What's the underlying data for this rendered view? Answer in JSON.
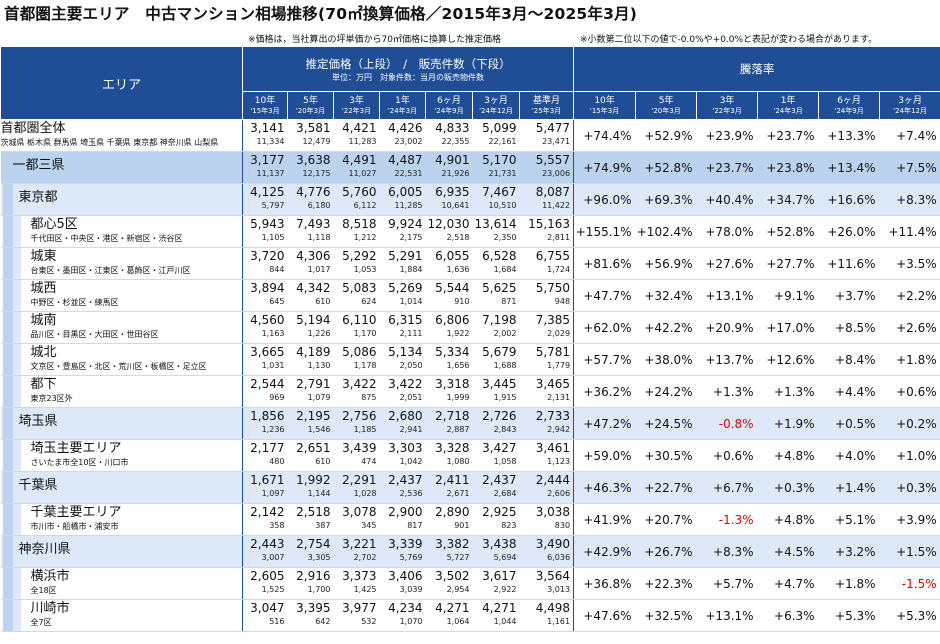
{
  "title": "首都圏主要エリア　中古マンション相場推移(70㎡換算価格／2015年3月～2025年3月)",
  "notes": {
    "left": "※価格は，当社算出の坪単価から70㎡価格に換算した推定価格",
    "right": "※小数第二位以下の値で-0.0%や+0.0%と表記が変わる場合があります。"
  },
  "header": {
    "area": "エリア",
    "price_group": "推定価格（上段）　/　販売件数（下段）",
    "price_sub": "単位：万円　対象件数：当月の販売物件数",
    "change_group": "騰落率",
    "price_cols": [
      {
        "label": "10年",
        "sub": "'15年3月"
      },
      {
        "label": "5年",
        "sub": "'20年3月"
      },
      {
        "label": "3年",
        "sub": "'22年3月"
      },
      {
        "label": "1年",
        "sub": "'24年3月"
      },
      {
        "label": "6ヶ月",
        "sub": "'24年9月"
      },
      {
        "label": "3ヶ月",
        "sub": "'24年12月"
      },
      {
        "label": "基準月",
        "sub": "'25年3月"
      }
    ],
    "change_cols": [
      {
        "label": "10年",
        "sub": "'15年3月"
      },
      {
        "label": "5年",
        "sub": "'20年3月"
      },
      {
        "label": "3年",
        "sub": "'22年3月"
      },
      {
        "label": "1年",
        "sub": "'24年3月"
      },
      {
        "label": "6ヶ月",
        "sub": "'24年9月"
      },
      {
        "label": "3ヶ月",
        "sub": "'24年12月"
      }
    ]
  },
  "rows": [
    {
      "name": "首都圏全体",
      "sub": "茨城県 栃木県 群馬県 埼玉県 千葉県 東京都 神奈川県 山梨県",
      "level": 0,
      "prices": [
        "3,141",
        "3,581",
        "4,421",
        "4,426",
        "4,833",
        "5,099",
        "5,477"
      ],
      "counts": [
        "11,334",
        "12,479",
        "11,283",
        "23,002",
        "22,355",
        "22,161",
        "23,471"
      ],
      "changes": [
        "+74.4%",
        "+52.9%",
        "+23.9%",
        "+23.7%",
        "+13.3%",
        "+7.4%"
      ]
    },
    {
      "name": "一都三県",
      "sub": "",
      "level": 1,
      "prices": [
        "3,177",
        "3,638",
        "4,491",
        "4,487",
        "4,901",
        "5,170",
        "5,557"
      ],
      "counts": [
        "11,137",
        "12,175",
        "11,027",
        "22,531",
        "21,926",
        "21,731",
        "23,006"
      ],
      "changes": [
        "+74.9%",
        "+52.8%",
        "+23.7%",
        "+23.8%",
        "+13.4%",
        "+7.5%"
      ]
    },
    {
      "name": "東京都",
      "sub": "",
      "level": 2,
      "prices": [
        "4,125",
        "4,776",
        "5,760",
        "6,005",
        "6,935",
        "7,467",
        "8,087"
      ],
      "counts": [
        "5,797",
        "6,180",
        "6,112",
        "11,285",
        "10,641",
        "10,510",
        "11,422"
      ],
      "changes": [
        "+96.0%",
        "+69.3%",
        "+40.4%",
        "+34.7%",
        "+16.6%",
        "+8.3%"
      ]
    },
    {
      "name": "都心5区",
      "sub": "千代田区・中央区・港区・新宿区・渋谷区",
      "level": 3,
      "prices": [
        "5,943",
        "7,493",
        "8,518",
        "9,924",
        "12,030",
        "13,614",
        "15,163"
      ],
      "counts": [
        "1,105",
        "1,118",
        "1,212",
        "2,175",
        "2,518",
        "2,350",
        "2,811"
      ],
      "changes": [
        "+155.1%",
        "+102.4%",
        "+78.0%",
        "+52.8%",
        "+26.0%",
        "+11.4%"
      ]
    },
    {
      "name": "城東",
      "sub": "台東区・墨田区・江東区・葛飾区・江戸川区",
      "level": 3,
      "prices": [
        "3,720",
        "4,306",
        "5,292",
        "5,291",
        "6,055",
        "6,528",
        "6,755"
      ],
      "counts": [
        "844",
        "1,017",
        "1,053",
        "1,884",
        "1,636",
        "1,684",
        "1,724"
      ],
      "changes": [
        "+81.6%",
        "+56.9%",
        "+27.6%",
        "+27.7%",
        "+11.6%",
        "+3.5%"
      ]
    },
    {
      "name": "城西",
      "sub": "中野区・杉並区・練馬区",
      "level": 3,
      "prices": [
        "3,894",
        "4,342",
        "5,083",
        "5,269",
        "5,544",
        "5,625",
        "5,750"
      ],
      "counts": [
        "645",
        "610",
        "624",
        "1,014",
        "910",
        "871",
        "948"
      ],
      "changes": [
        "+47.7%",
        "+32.4%",
        "+13.1%",
        "+9.1%",
        "+3.7%",
        "+2.2%"
      ]
    },
    {
      "name": "城南",
      "sub": "品川区・目黒区・大田区・世田谷区",
      "level": 3,
      "prices": [
        "4,560",
        "5,194",
        "6,110",
        "6,315",
        "6,806",
        "7,198",
        "7,385"
      ],
      "counts": [
        "1,163",
        "1,226",
        "1,170",
        "2,111",
        "1,922",
        "2,002",
        "2,029"
      ],
      "changes": [
        "+62.0%",
        "+42.2%",
        "+20.9%",
        "+17.0%",
        "+8.5%",
        "+2.6%"
      ]
    },
    {
      "name": "城北",
      "sub": "文京区・豊島区・北区・荒川区・板橋区・足立区",
      "level": 3,
      "prices": [
        "3,665",
        "4,189",
        "5,086",
        "5,134",
        "5,334",
        "5,679",
        "5,781"
      ],
      "counts": [
        "1,031",
        "1,130",
        "1,178",
        "2,050",
        "1,656",
        "1,688",
        "1,779"
      ],
      "changes": [
        "+57.7%",
        "+38.0%",
        "+13.7%",
        "+12.6%",
        "+8.4%",
        "+1.8%"
      ]
    },
    {
      "name": "都下",
      "sub": "東京23区外",
      "level": 3,
      "prices": [
        "2,544",
        "2,791",
        "3,422",
        "3,422",
        "3,318",
        "3,445",
        "3,465"
      ],
      "counts": [
        "969",
        "1,079",
        "875",
        "2,051",
        "1,999",
        "1,915",
        "2,131"
      ],
      "changes": [
        "+36.2%",
        "+24.2%",
        "+1.3%",
        "+1.3%",
        "+4.4%",
        "+0.6%"
      ]
    },
    {
      "name": "埼玉県",
      "sub": "",
      "level": 2,
      "prices": [
        "1,856",
        "2,195",
        "2,756",
        "2,680",
        "2,718",
        "2,726",
        "2,733"
      ],
      "counts": [
        "1,236",
        "1,546",
        "1,185",
        "2,941",
        "2,887",
        "2,843",
        "2,942"
      ],
      "changes": [
        "+47.2%",
        "+24.5%",
        "-0.8%",
        "+1.9%",
        "+0.5%",
        "+0.2%"
      ]
    },
    {
      "name": "埼玉主要エリア",
      "sub": "さいたま市全10区・川口市",
      "level": 3,
      "prices": [
        "2,177",
        "2,651",
        "3,439",
        "3,303",
        "3,328",
        "3,427",
        "3,461"
      ],
      "counts": [
        "480",
        "610",
        "474",
        "1,042",
        "1,080",
        "1,058",
        "1,123"
      ],
      "changes": [
        "+59.0%",
        "+30.5%",
        "+0.6%",
        "+4.8%",
        "+4.0%",
        "+1.0%"
      ]
    },
    {
      "name": "千葉県",
      "sub": "",
      "level": 2,
      "prices": [
        "1,671",
        "1,992",
        "2,291",
        "2,437",
        "2,411",
        "2,437",
        "2,444"
      ],
      "counts": [
        "1,097",
        "1,144",
        "1,028",
        "2,536",
        "2,671",
        "2,684",
        "2,606"
      ],
      "changes": [
        "+46.3%",
        "+22.7%",
        "+6.7%",
        "+0.3%",
        "+1.4%",
        "+0.3%"
      ]
    },
    {
      "name": "千葉主要エリア",
      "sub": "市川市・船橋市・浦安市",
      "level": 3,
      "prices": [
        "2,142",
        "2,518",
        "3,078",
        "2,900",
        "2,890",
        "2,925",
        "3,038"
      ],
      "counts": [
        "358",
        "387",
        "345",
        "817",
        "901",
        "823",
        "830"
      ],
      "changes": [
        "+41.9%",
        "+20.7%",
        "-1.3%",
        "+4.8%",
        "+5.1%",
        "+3.9%"
      ]
    },
    {
      "name": "神奈川県",
      "sub": "",
      "level": 2,
      "prices": [
        "2,443",
        "2,754",
        "3,221",
        "3,339",
        "3,382",
        "3,438",
        "3,490"
      ],
      "counts": [
        "3,007",
        "3,305",
        "2,702",
        "5,769",
        "5,727",
        "5,694",
        "6,036"
      ],
      "changes": [
        "+42.9%",
        "+26.7%",
        "+8.3%",
        "+4.5%",
        "+3.2%",
        "+1.5%"
      ]
    },
    {
      "name": "横浜市",
      "sub": "全18区",
      "level": 3,
      "prices": [
        "2,605",
        "2,916",
        "3,373",
        "3,406",
        "3,502",
        "3,617",
        "3,564"
      ],
      "counts": [
        "1,525",
        "1,700",
        "1,425",
        "3,039",
        "2,954",
        "2,922",
        "3,013"
      ],
      "changes": [
        "+36.8%",
        "+22.3%",
        "+5.7%",
        "+4.7%",
        "+1.8%",
        "-1.5%"
      ]
    },
    {
      "name": "川崎市",
      "sub": "全7区",
      "level": 3,
      "prices": [
        "3,047",
        "3,395",
        "3,977",
        "4,234",
        "4,271",
        "4,271",
        "4,498"
      ],
      "counts": [
        "516",
        "642",
        "532",
        "1,070",
        "1,064",
        "1,044",
        "1,161"
      ],
      "changes": [
        "+47.6%",
        "+32.5%",
        "+13.1%",
        "+6.3%",
        "+5.3%",
        "+5.3%"
      ]
    }
  ]
}
